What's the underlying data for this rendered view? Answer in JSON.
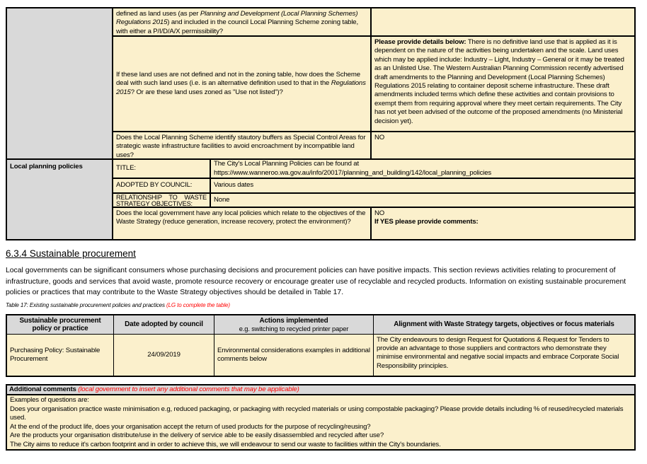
{
  "colors": {
    "cream": "#FBF0CC",
    "gray": "#D9D9D9",
    "red": "#FF0000",
    "border": "#000000"
  },
  "planning_table": {
    "row_defined": {
      "q_pre": "defined as land uses (as per ",
      "q_italic": "Planning and Development (Local Planning Schemes) Regulations 2015",
      "q_post": ") and included in the council Local Planning Scheme zoning table, with either a P/I/D/A/X permissibility?"
    },
    "row_not_defined": {
      "q_pre": "If these land uses are not defined and not in the zoning table, how does the Scheme deal with such land uses (i.e. is an alternative definition used to that in the ",
      "q_italic": "Regulations 2015",
      "q_post": "? Or are these land uses zoned as \"Use not listed\")?",
      "a_bold": "Please provide details below:",
      "a_text": " There is no definitive land use that is applied as it is dependent on the nature of the activities being undertaken and the scale. Land uses which may be applied include: Industry – Light, Industry – General or it may be treated as an Unlisted Use. The Western Australian Planning Commission recently advertised draft amendments to the Planning and Development (Local Planning Schemes) Regulations 2015 relating to container deposit scheme infrastructure. These draft amendments included terms which define these activities and contain provisions to exempt them from requiring approval where they meet certain requirements. The City has not yet been advised of the outcome of the proposed amendments (no Ministerial decision yet)."
    },
    "row_buffers": {
      "question": "Does the Local Planning Scheme identify stautory buffers as Special Control Areas for strategic waste infrastructure facilities to avoid encroachment by incompatible land uses?",
      "answer": "NO"
    },
    "section_label": "Local planning policies",
    "row_title": {
      "label": "TITLE:",
      "value_line1": "The City's Local Planning Policies can be found at",
      "value_line2": "https://www.wanneroo.wa.gov.au/info/20017/planning_and_building/142/local_planning_policies"
    },
    "row_adopted": {
      "label": "ADOPTED BY COUNCIL:",
      "value": "Various dates"
    },
    "row_relationship": {
      "label_line1": "RELATIONSHIP TO WASTE",
      "label_line2": "STRATEGY OBJECTIVES:",
      "value": "None"
    },
    "row_local_policies": {
      "question": "Does the local government have any local policies which relate to the objectives of the Waste Strategy (reduce generation, increase recovery, protect the environment)?",
      "answer": "NO",
      "answer_bold": "If YES please provide comments:"
    }
  },
  "section": {
    "heading": "6.3.4 Sustainable procurement",
    "intro": "Local governments can be significant consumers whose purchasing decisions and procurement policies can have positive impacts. This section reviews activities relating to procurement of infrastructure, goods and services that avoid waste, promote resource recovery or encourage greater use of recyclable and recycled products. Information on existing sustainable procurement policies or practices that may contribute to the Waste Strategy objectives should be detailed in Table 17.",
    "table_caption": "Table 17: Existing sustainable procurement policies and practices ",
    "table_caption_note": "(LG to complete the table)"
  },
  "procurement_table": {
    "headers": [
      "Sustainable procurement policy or practice",
      "Date adopted by council",
      "Actions implemented",
      "Alignment with Waste Strategy targets, objectives or focus materials"
    ],
    "header_actions_sub": "e.g. switching to recycled printer paper",
    "rows": [
      {
        "policy": "Purchasing Policy: Sustainable Procurement",
        "date": "24/09/2019",
        "actions": "Environmental considerations examples in additional comments below",
        "alignment": "The City endeavours to design Request for Quotations & Request for Tenders to provide an advantage to those suppliers and contractors who demonstrate they minimise environmental and negative social impacts and embrace Corporate Social Responsibility principles."
      }
    ]
  },
  "additional_comments": {
    "header": "Additional comments ",
    "header_note": "(local government to insert any additional comments that may be applicable)",
    "lines": [
      "Examples of questions are:",
      "Does your organisation practice waste minimisation e.g, reduced packaging, or packaging with recycled materials or using compostable packaging? Please provide details including % of reused/recycled materials used.",
      "At the end of the product life, does your organisation accept the return of used products for the purpose of recycling/reusing?",
      "Are the products your organisation distribute/use in the delivery of service able to be easily disassembled and recycled after use?",
      "The City aims to reduce it's carbon footprint and in order to achieve this, we will endeavour to send our waste to facilities within the City's boundaries."
    ]
  }
}
